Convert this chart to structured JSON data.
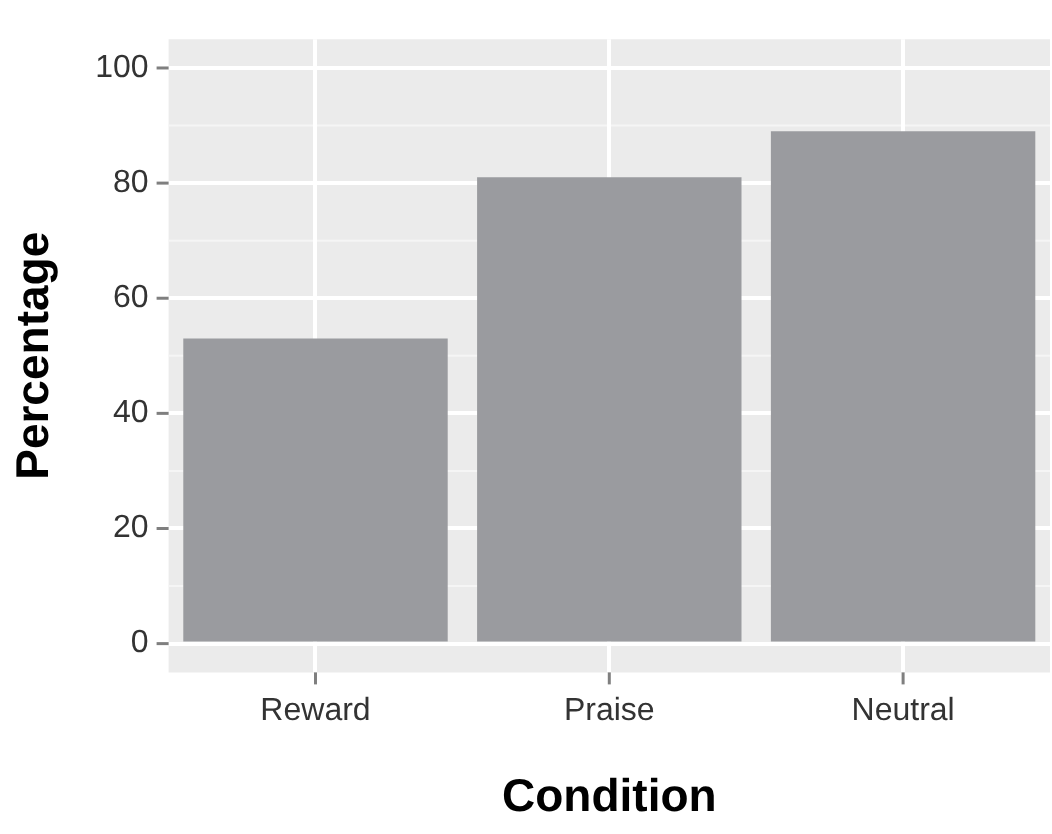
{
  "chart_data": {
    "type": "bar",
    "xlabel": "Condition",
    "ylabel": "Percentage",
    "categories": [
      "Reward",
      "Praise",
      "Neutral"
    ],
    "values": [
      53,
      81,
      89
    ],
    "color": "#9a9b9f",
    "ylim": [
      -5,
      105
    ],
    "yticks": [
      0,
      20,
      40,
      60,
      80,
      100
    ],
    "grid": true,
    "legend": false
  }
}
